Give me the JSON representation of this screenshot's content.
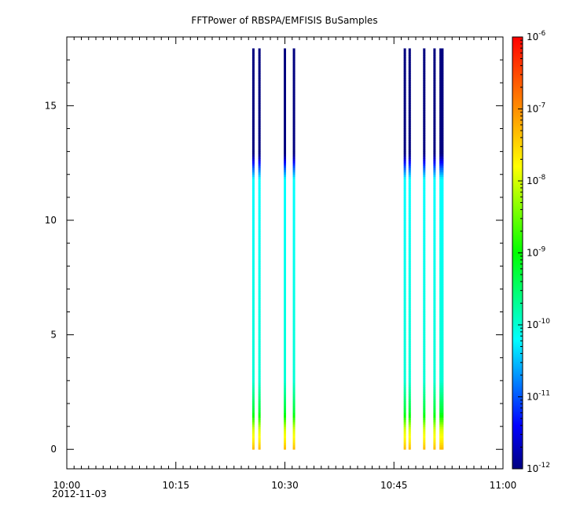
{
  "chart_data": {
    "type": "heatmap",
    "title": "FFTPower of RBSPA/EMFISIS  BuSamples",
    "xlabel": "",
    "ylabel": "",
    "x_axis": {
      "range": [
        "10:00",
        "11:00"
      ],
      "ticks": [
        "10:00",
        "10:15",
        "10:30",
        "10:45",
        "11:00"
      ],
      "date_label": "2012-11-03"
    },
    "y_axis": {
      "range": [
        -0.85,
        18.0
      ],
      "ticks": [
        0,
        5,
        10,
        15
      ]
    },
    "colorbar": {
      "scale": "log",
      "range": [
        1e-12,
        1e-06
      ],
      "tick_labels": [
        {
          "mantissa": "10",
          "exponent": "-12",
          "value": 1e-12
        },
        {
          "mantissa": "10",
          "exponent": "-11",
          "value": 1e-11
        },
        {
          "mantissa": "10",
          "exponent": "-10",
          "value": 1e-10
        },
        {
          "mantissa": "10",
          "exponent": "-9",
          "value": 1e-09
        },
        {
          "mantissa": "10",
          "exponent": "-8",
          "value": 1e-08
        },
        {
          "mantissa": "10",
          "exponent": "-7",
          "value": 1e-07
        },
        {
          "mantissa": "10",
          "exponent": "-6",
          "value": 1e-06
        }
      ],
      "colormap": [
        "#000080",
        "#0000ff",
        "#00ffff",
        "#00ff00",
        "#ffff00",
        "#ff8000",
        "#ff0000"
      ]
    },
    "grid": false,
    "legend": "colorbar-right",
    "bursts": [
      {
        "time": "10:25:40",
        "top": 17.5
      },
      {
        "time": "10:26:30",
        "top": 17.5
      },
      {
        "time": "10:30:00",
        "top": 17.5
      },
      {
        "time": "10:31:15",
        "top": 17.5
      },
      {
        "time": "10:46:30",
        "top": 17.5
      },
      {
        "time": "10:47:10",
        "top": 17.5
      },
      {
        "time": "10:49:10",
        "top": 17.5
      },
      {
        "time": "10:50:35",
        "top": 17.5
      },
      {
        "time": "10:51:25",
        "top": 17.5
      },
      {
        "time": "10:51:40",
        "top": 17.5
      }
    ],
    "spectrum_profile": [
      {
        "f": 0.0,
        "log_power": -7.3
      },
      {
        "f": 0.4,
        "log_power": -7.7
      },
      {
        "f": 0.9,
        "log_power": -8.0
      },
      {
        "f": 1.6,
        "log_power": -9.2
      },
      {
        "f": 3.0,
        "log_power": -10.0
      },
      {
        "f": 11.8,
        "log_power": -10.2
      },
      {
        "f": 12.3,
        "log_power": -11.0
      },
      {
        "f": 12.9,
        "log_power": -12.0
      },
      {
        "f": 17.5,
        "log_power": -12.0
      }
    ]
  }
}
